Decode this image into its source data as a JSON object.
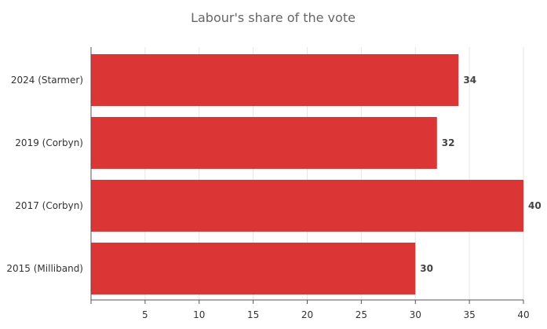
{
  "chart_data": {
    "type": "bar",
    "orientation": "horizontal",
    "title": "Labour's share of the vote",
    "categories": [
      "2024 (Starmer)",
      "2019 (Corbyn)",
      "2017 (Corbyn)",
      "2015 (Milliband)"
    ],
    "values": [
      34,
      32,
      40,
      30
    ],
    "data_labels": [
      "34",
      "32",
      "40",
      "30"
    ],
    "xlim": [
      0,
      40
    ],
    "xticks": [
      5,
      10,
      15,
      20,
      25,
      30,
      35,
      40
    ],
    "grid": true,
    "bar_color": "#dc3535"
  }
}
